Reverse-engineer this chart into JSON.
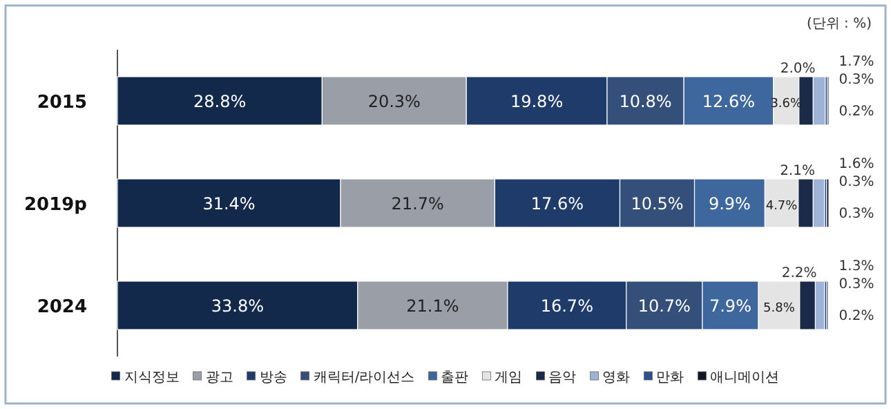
{
  "chart_data": {
    "type": "bar",
    "orientation": "horizontal",
    "stacked": true,
    "annotations": [
      "(단위 : %)"
    ],
    "categories": [
      "2015",
      "2019p",
      "2024"
    ],
    "legend": "bottom",
    "series": [
      {
        "name": "지식정보",
        "color": "#13294b",
        "values": [
          28.8,
          31.4,
          33.8
        ],
        "value_labels": [
          "28.8%",
          "31.4%",
          "33.8%"
        ]
      },
      {
        "name": "광고",
        "color": "#9a9ea6",
        "values": [
          20.3,
          21.7,
          21.1
        ],
        "value_labels": [
          "20.3%",
          "21.7%",
          "21.1%"
        ]
      },
      {
        "name": "방송",
        "color": "#1f3b6a",
        "values": [
          19.8,
          17.6,
          16.7
        ],
        "value_labels": [
          "19.8%",
          "17.6%",
          "16.7%"
        ]
      },
      {
        "name": "캐릭터/라이선스",
        "color": "#34507a",
        "values": [
          10.8,
          10.5,
          10.7
        ],
        "value_labels": [
          "10.8%",
          "10.5%",
          "10.7%"
        ]
      },
      {
        "name": "출판",
        "color": "#3e679e",
        "values": [
          12.6,
          9.9,
          7.9
        ],
        "value_labels": [
          "12.6%",
          "9.9%",
          "7.9%"
        ]
      },
      {
        "name": "게임",
        "color": "#e4e4e4",
        "values": [
          3.6,
          4.7,
          5.8
        ],
        "value_labels": [
          "3.6%",
          "4.7%",
          "5.8%"
        ]
      },
      {
        "name": "음악",
        "color": "#1a2a48",
        "values": [
          2.0,
          2.1,
          2.2
        ],
        "value_labels": [
          "2.0%",
          "2.1%",
          "2.2%"
        ]
      },
      {
        "name": "영화",
        "color": "#9fb3d6",
        "values": [
          1.7,
          1.6,
          1.3
        ],
        "value_labels": [
          "1.7%",
          "1.6%",
          "1.3%"
        ]
      },
      {
        "name": "만화",
        "color": "#2d4f8a",
        "values": [
          0.3,
          0.3,
          0.3
        ],
        "value_labels": [
          "0.3%",
          "0.3%",
          "0.3%"
        ]
      },
      {
        "name": "애니메이션",
        "color": "#101828",
        "values": [
          0.2,
          0.3,
          0.2
        ],
        "value_labels": [
          "0.2%",
          "0.3%",
          "0.2%"
        ]
      }
    ]
  }
}
